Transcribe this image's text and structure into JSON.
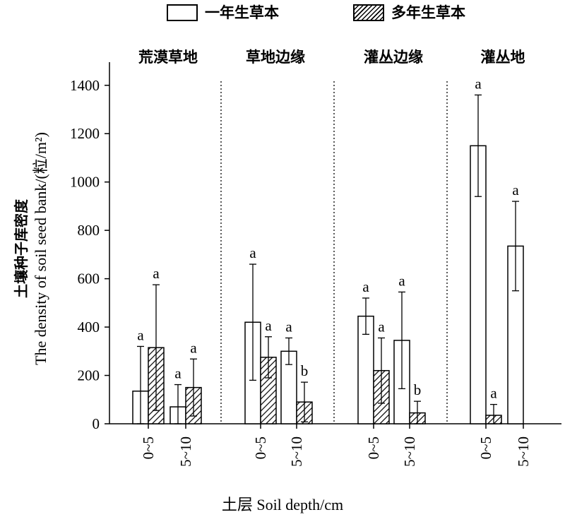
{
  "legend": {
    "annual_label": "一年生草本",
    "perennial_label": "多年生草本"
  },
  "y_axis": {
    "label_cn": "土壤种子库密度",
    "label_en": "The density of soil seed bank/(粒/m²)"
  },
  "x_axis": {
    "label": "土层 Soil depth/cm"
  },
  "chart_data": {
    "type": "bar",
    "ylim": [
      0,
      1500
    ],
    "yticks": [
      0,
      200,
      400,
      600,
      800,
      1000,
      1200,
      1400
    ],
    "grid": false,
    "legend_position": "top",
    "series_names": [
      "一年生草本",
      "多年生草本"
    ],
    "depth_categories": [
      "0~5",
      "5~10"
    ],
    "groups": [
      {
        "name": "荒漠草地",
        "depths": [
          {
            "depth": "0~5",
            "bars": [
              {
                "series": "annual",
                "value": 135,
                "err": 185,
                "label": "a"
              },
              {
                "series": "perennial",
                "value": 315,
                "err": 260,
                "label": "a"
              }
            ]
          },
          {
            "depth": "5~10",
            "bars": [
              {
                "series": "annual",
                "value": 70,
                "err": 92,
                "label": "a"
              },
              {
                "series": "perennial",
                "value": 150,
                "err": 118,
                "label": "a"
              }
            ]
          }
        ]
      },
      {
        "name": "草地边缘",
        "depths": [
          {
            "depth": "0~5",
            "bars": [
              {
                "series": "annual",
                "value": 420,
                "err": 240,
                "label": "a"
              },
              {
                "series": "perennial",
                "value": 275,
                "err": 85,
                "label": "a"
              }
            ]
          },
          {
            "depth": "5~10",
            "bars": [
              {
                "series": "annual",
                "value": 300,
                "err": 55,
                "label": "a"
              },
              {
                "series": "perennial",
                "value": 90,
                "err": 82,
                "label": "b"
              }
            ]
          }
        ]
      },
      {
        "name": "灌丛边缘",
        "depths": [
          {
            "depth": "0~5",
            "bars": [
              {
                "series": "annual",
                "value": 445,
                "err": 75,
                "label": "a"
              },
              {
                "series": "perennial",
                "value": 220,
                "err": 135,
                "label": "a"
              }
            ]
          },
          {
            "depth": "5~10",
            "bars": [
              {
                "series": "annual",
                "value": 345,
                "err": 200,
                "label": "a"
              },
              {
                "series": "perennial",
                "value": 45,
                "err": 48,
                "label": "b"
              }
            ]
          }
        ]
      },
      {
        "name": "灌丛地",
        "depths": [
          {
            "depth": "0~5",
            "bars": [
              {
                "series": "annual",
                "value": 1150,
                "err": 210,
                "label": "a"
              },
              {
                "series": "perennial",
                "value": 35,
                "err": 45,
                "label": "a"
              }
            ]
          },
          {
            "depth": "5~10",
            "bars": [
              {
                "series": "annual",
                "value": 735,
                "err": 185,
                "label": "a"
              }
            ]
          }
        ]
      }
    ]
  }
}
